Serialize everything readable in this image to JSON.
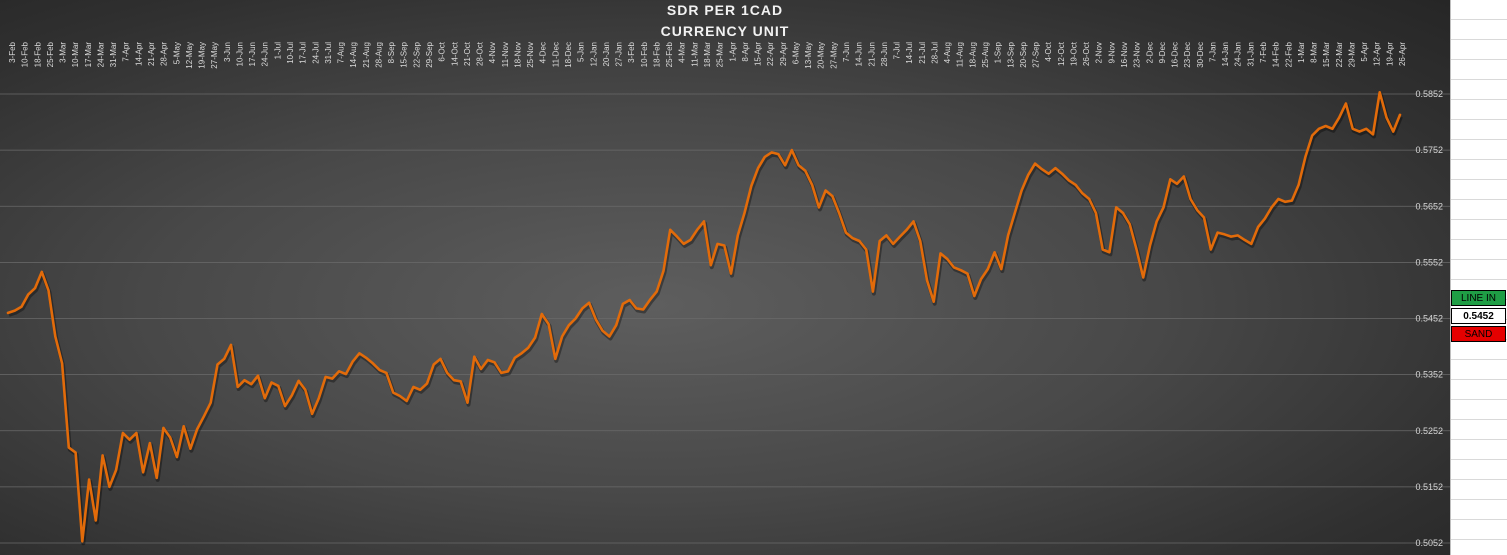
{
  "chart_data": {
    "type": "line",
    "title": "SDR PER 1CAD",
    "subtitle": "CURRENCY UNIT",
    "xlabel": "",
    "ylabel": "",
    "ylim": [
      0.5052,
      0.5852
    ],
    "yticks": [
      "0.5052",
      "0.5152",
      "0.5252",
      "0.5352",
      "0.5452",
      "0.5552",
      "0.5652",
      "0.5752",
      "0.5852"
    ],
    "grid": true,
    "legend": "none",
    "line_color": "#e26b0a",
    "x_tick_labels": [
      "3-Feb",
      "10-Feb",
      "18-Feb",
      "25-Feb",
      "3-Mar",
      "10-Mar",
      "17-Mar",
      "24-Mar",
      "31-Mar",
      "7-Apr",
      "14-Apr",
      "21-Apr",
      "28-Apr",
      "5-May",
      "12-May",
      "19-May",
      "27-May",
      "3-Jun",
      "10-Jun",
      "17-Jun",
      "24-Jun",
      "1-Jul",
      "10-Jul",
      "17-Jul",
      "24-Jul",
      "31-Jul",
      "7-Aug",
      "14-Aug",
      "21-Aug",
      "28-Aug",
      "8-Sep",
      "15-Sep",
      "22-Sep",
      "29-Sep",
      "6-Oct",
      "14-Oct",
      "21-Oct",
      "28-Oct",
      "4-Nov",
      "11-Nov",
      "18-Nov",
      "25-Nov",
      "4-Dec",
      "11-Dec",
      "18-Dec",
      "5-Jan",
      "12-Jan",
      "20-Jan",
      "27-Jan",
      "3-Feb",
      "10-Feb",
      "18-Feb",
      "25-Feb",
      "4-Mar",
      "11-Mar",
      "18-Mar",
      "25-Mar",
      "1-Apr",
      "8-Apr",
      "15-Apr",
      "22-Apr",
      "29-Apr",
      "6-May",
      "13-May",
      "20-May",
      "27-May",
      "7-Jun",
      "14-Jun",
      "21-Jun",
      "28-Jun",
      "7-Jul",
      "14-Jul",
      "21-Jul",
      "28-Jul",
      "4-Aug",
      "11-Aug",
      "18-Aug",
      "25-Aug",
      "1-Sep",
      "13-Sep",
      "20-Sep",
      "27-Sep",
      "4-Oct",
      "12-Oct",
      "19-Oct",
      "26-Oct",
      "2-Nov",
      "9-Nov",
      "16-Nov",
      "23-Nov",
      "2-Dec",
      "9-Dec",
      "16-Dec",
      "23-Dec",
      "30-Dec",
      "7-Jan",
      "14-Jan",
      "24-Jan",
      "31-Jan",
      "7-Feb",
      "14-Feb",
      "22-Feb",
      "1-Mar",
      "8-Mar",
      "15-Mar",
      "22-Mar",
      "29-Mar",
      "5-Apr",
      "12-Apr",
      "19-Apr",
      "26-Apr"
    ],
    "series": [
      {
        "values": [
          0.5462,
          0.5466,
          0.5473,
          0.5495,
          0.5506,
          0.5535,
          0.5502,
          0.542,
          0.5372,
          0.5222,
          0.5213,
          0.5055,
          0.5165,
          0.5092,
          0.5208,
          0.5152,
          0.5182,
          0.5248,
          0.5236,
          0.5248,
          0.5178,
          0.523,
          0.5168,
          0.5257,
          0.524,
          0.5205,
          0.526,
          0.522,
          0.5255,
          0.5278,
          0.5302,
          0.537,
          0.538,
          0.5405,
          0.533,
          0.5342,
          0.5335,
          0.535,
          0.531,
          0.5338,
          0.5332,
          0.5296,
          0.5315,
          0.5341,
          0.5325,
          0.5282,
          0.531,
          0.5348,
          0.5345,
          0.5358,
          0.5353,
          0.5375,
          0.539,
          0.5382,
          0.5372,
          0.536,
          0.5355,
          0.532,
          0.5314,
          0.5305,
          0.533,
          0.5325,
          0.5336,
          0.537,
          0.538,
          0.5355,
          0.5342,
          0.534,
          0.5302,
          0.5384,
          0.5362,
          0.5378,
          0.5374,
          0.5355,
          0.5358,
          0.5382,
          0.539,
          0.54,
          0.5418,
          0.546,
          0.5442,
          0.538,
          0.542,
          0.544,
          0.5452,
          0.547,
          0.548,
          0.545,
          0.543,
          0.542,
          0.544,
          0.5478,
          0.5485,
          0.547,
          0.5468,
          0.5485,
          0.55,
          0.5537,
          0.561,
          0.5598,
          0.5585,
          0.5592,
          0.561,
          0.5625,
          0.5547,
          0.5585,
          0.5582,
          0.5532,
          0.56,
          0.564,
          0.5688,
          0.572,
          0.574,
          0.5748,
          0.5745,
          0.5725,
          0.5752,
          0.5725,
          0.5715,
          0.569,
          0.565,
          0.568,
          0.567,
          0.564,
          0.5605,
          0.5595,
          0.559,
          0.5575,
          0.55,
          0.559,
          0.56,
          0.5585,
          0.5598,
          0.561,
          0.5625,
          0.559,
          0.552,
          0.5482,
          0.5568,
          0.5558,
          0.5543,
          0.5538,
          0.5532,
          0.5492,
          0.5522,
          0.554,
          0.557,
          0.554,
          0.56,
          0.564,
          0.568,
          0.5708,
          0.5728,
          0.5718,
          0.571,
          0.572,
          0.571,
          0.5698,
          0.569,
          0.5675,
          0.5665,
          0.564,
          0.5575,
          0.557,
          0.565,
          0.564,
          0.562,
          0.5575,
          0.5525,
          0.5582,
          0.5625,
          0.565,
          0.57,
          0.5692,
          0.5705,
          0.5665,
          0.5645,
          0.5632,
          0.5575,
          0.5605,
          0.5602,
          0.5598,
          0.56,
          0.5592,
          0.5585,
          0.5615,
          0.563,
          0.565,
          0.5665,
          0.566,
          0.5662,
          0.569,
          0.574,
          0.5778,
          0.579,
          0.5795,
          0.579,
          0.581,
          0.5835,
          0.579,
          0.5785,
          0.579,
          0.578,
          0.5855,
          0.581,
          0.5785,
          0.5815
        ]
      }
    ]
  },
  "side_panel": {
    "line_in_label": "LINE IN",
    "line_in_value": "0.5452",
    "sand_label": "SAND",
    "line_in_color": "#1f9e45",
    "sand_color": "#e50000"
  }
}
